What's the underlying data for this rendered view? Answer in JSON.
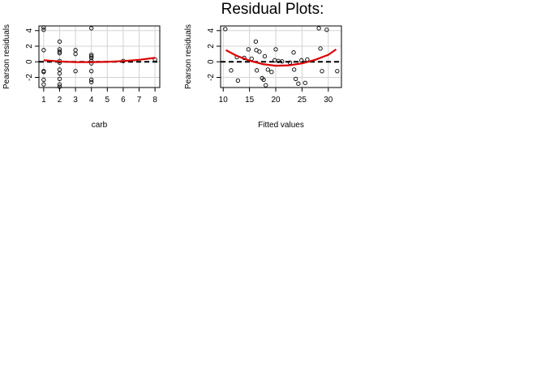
{
  "figure": {
    "title": "Residual Plots:"
  },
  "chart_data": [
    {
      "type": "scatter",
      "title": "",
      "xlabel": "carb",
      "ylabel": "Pearson residuals",
      "xlim": [
        0.7,
        8.3
      ],
      "ylim": [
        -3.3,
        4.6
      ],
      "x_ticks": [
        1,
        2,
        3,
        4,
        5,
        6,
        7,
        8
      ],
      "y_ticks": [
        -2,
        0,
        2,
        4
      ],
      "grid": true,
      "reference_line": {
        "y": 0,
        "style": "dashed",
        "color": "#000000"
      },
      "smooth_color": "#dd0000",
      "points": [
        [
          1,
          4.4
        ],
        [
          1,
          4.1
        ],
        [
          1,
          1.5
        ],
        [
          1,
          -1.2
        ],
        [
          1,
          -1.3
        ],
        [
          1,
          -2.3
        ],
        [
          1,
          -2.9
        ],
        [
          2,
          2.6
        ],
        [
          2,
          1.6
        ],
        [
          2,
          1.3
        ],
        [
          2,
          1.1
        ],
        [
          2,
          0.1
        ],
        [
          2,
          -0.1
        ],
        [
          2,
          -1.0
        ],
        [
          2,
          -1.5
        ],
        [
          2,
          -2.2
        ],
        [
          2,
          -2.9
        ],
        [
          2,
          -3.2
        ],
        [
          3,
          1.5
        ],
        [
          3,
          1.0
        ],
        [
          3,
          -1.2
        ],
        [
          4,
          4.3
        ],
        [
          4,
          0.9
        ],
        [
          4,
          0.7
        ],
        [
          4,
          0.5
        ],
        [
          4,
          0.1
        ],
        [
          4,
          -0.2
        ],
        [
          4,
          -1.2
        ],
        [
          4,
          -2.3
        ],
        [
          4,
          -2.6
        ],
        [
          6,
          0.1
        ],
        [
          8,
          0.3
        ]
      ],
      "smooth": [
        [
          1,
          0.2
        ],
        [
          2,
          0.05
        ],
        [
          3,
          -0.05
        ],
        [
          4,
          -0.05
        ],
        [
          5,
          0.0
        ],
        [
          6,
          0.1
        ],
        [
          7,
          0.25
        ],
        [
          8,
          0.5
        ]
      ]
    },
    {
      "type": "scatter",
      "title": "",
      "xlabel": "Fitted values",
      "ylabel": "Pearson residuals",
      "xlim": [
        9.5,
        32.5
      ],
      "ylim": [
        -3.3,
        4.6
      ],
      "x_ticks": [
        10,
        15,
        20,
        25,
        30
      ],
      "y_ticks": [
        -2,
        0,
        2,
        4
      ],
      "grid": true,
      "reference_line": {
        "y": 0,
        "style": "dashed",
        "color": "#000000"
      },
      "smooth_color": "#dd0000",
      "points": [
        [
          10.4,
          4.2
        ],
        [
          11.5,
          -1.1
        ],
        [
          12.6,
          0.6
        ],
        [
          12.8,
          -2.4
        ],
        [
          14.0,
          0.5
        ],
        [
          14.8,
          1.6
        ],
        [
          15.4,
          0.4
        ],
        [
          16.2,
          2.6
        ],
        [
          16.3,
          1.5
        ],
        [
          16.4,
          -1.1
        ],
        [
          16.9,
          1.3
        ],
        [
          17.4,
          -2.1
        ],
        [
          17.7,
          -2.3
        ],
        [
          17.9,
          0.7
        ],
        [
          18.1,
          -3.0
        ],
        [
          18.5,
          -1.0
        ],
        [
          19.2,
          -1.3
        ],
        [
          19.8,
          0.2
        ],
        [
          20.0,
          1.6
        ],
        [
          20.5,
          0.1
        ],
        [
          21.2,
          0.05
        ],
        [
          22.7,
          -0.1
        ],
        [
          23.4,
          1.2
        ],
        [
          23.5,
          -1.0
        ],
        [
          23.8,
          -2.2
        ],
        [
          24.3,
          -2.8
        ],
        [
          24.9,
          0.2
        ],
        [
          25.6,
          -2.7
        ],
        [
          26.0,
          0.3
        ],
        [
          28.2,
          4.3
        ],
        [
          28.5,
          1.7
        ],
        [
          28.8,
          -1.2
        ],
        [
          29.7,
          4.1
        ],
        [
          31.7,
          -1.2
        ]
      ],
      "smooth": [
        [
          10.5,
          1.5
        ],
        [
          12.5,
          0.8
        ],
        [
          15,
          0.15
        ],
        [
          17.5,
          -0.3
        ],
        [
          20,
          -0.5
        ],
        [
          22.5,
          -0.45
        ],
        [
          25,
          -0.2
        ],
        [
          27.5,
          0.25
        ],
        [
          30,
          0.9
        ],
        [
          31.5,
          1.6
        ]
      ]
    }
  ]
}
